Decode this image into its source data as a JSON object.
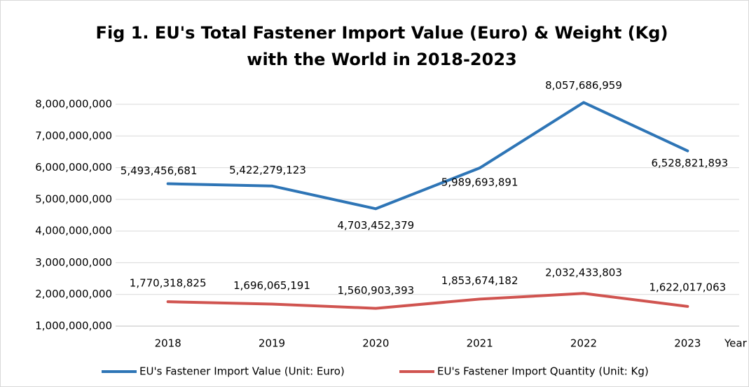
{
  "chart_data": {
    "type": "line",
    "title": [
      "Fig 1. EU's Total Fastener Import Value (Euro) & Weight (Kg)",
      "with the World in 2018-2023"
    ],
    "x_label": "Year",
    "categories": [
      "2018",
      "2019",
      "2020",
      "2021",
      "2022",
      "2023"
    ],
    "series": [
      {
        "name": "EU's Fastener Import Value (Unit: Euro)",
        "color": "#2e75b6",
        "values": [
          5493456681,
          5422279123,
          4703452379,
          5989693891,
          8057686959,
          6528821893
        ],
        "value_labels": [
          "5,493,456,681",
          "5,422,279,123",
          "4,703,452,379",
          "5,989,693,891",
          "8,057,686,959",
          "6,528,821,893"
        ]
      },
      {
        "name": "EU's Fastener Import Quantity (Unit: Kg)",
        "color": "#d05450",
        "values": [
          1770318825,
          1696065191,
          1560903393,
          1853674182,
          2032433803,
          1622017063
        ],
        "value_labels": [
          "1,770,318,825",
          "1,696,065,191",
          "1,560,903,393",
          "1,853,674,182",
          "2,032,433,803",
          "1,622,017,063"
        ]
      }
    ],
    "ylim": [
      1000000000,
      8000000000
    ],
    "yticks": [
      {
        "value": 1000000000,
        "label": "1,000,000,000"
      },
      {
        "value": 2000000000,
        "label": "2,000,000,000"
      },
      {
        "value": 3000000000,
        "label": "3,000,000,000"
      },
      {
        "value": 4000000000,
        "label": "4,000,000,000"
      },
      {
        "value": 5000000000,
        "label": "5,000,000,000"
      },
      {
        "value": 6000000000,
        "label": "6,000,000,000"
      },
      {
        "value": 7000000000,
        "label": "7,000,000,000"
      },
      {
        "value": 8000000000,
        "label": "8,000,000,000"
      }
    ],
    "grid": true,
    "legend": "bottom"
  }
}
